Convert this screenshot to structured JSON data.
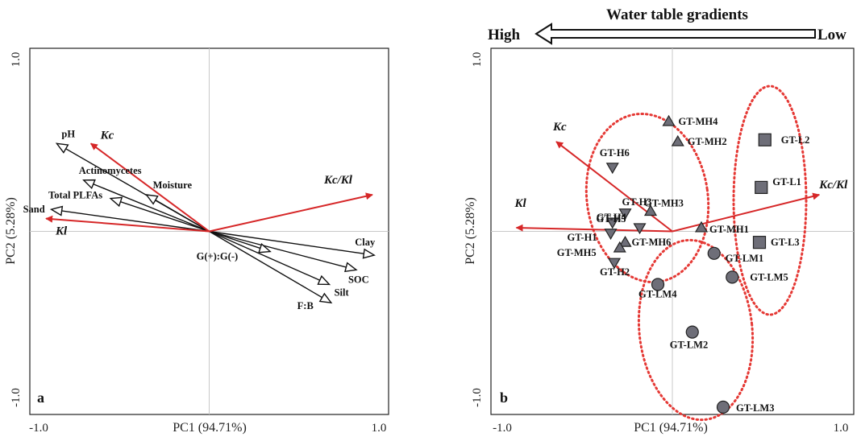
{
  "chart_data": [
    {
      "type": "biplot",
      "panel_label": "a",
      "xlabel": "PC1 (94.71%)",
      "ylabel": "PC2 (5.28%)",
      "xlim": [
        -1.0,
        1.0
      ],
      "ylim": [
        -1.0,
        1.0
      ],
      "x_ticks": [
        "-1.0",
        "1.0"
      ],
      "y_ticks": [
        "1.0",
        "-1.0"
      ],
      "center_lines": true,
      "variable_arrows": [
        {
          "name": "pH",
          "x": -0.85,
          "y": 0.48
        },
        {
          "name": "Actinomycetes",
          "x": -0.7,
          "y": 0.28
        },
        {
          "name": "Moisture",
          "x": -0.35,
          "y": 0.2
        },
        {
          "name": "Total PLFAs",
          "x": -0.55,
          "y": 0.18
        },
        {
          "name": "Sand",
          "x": -0.88,
          "y": 0.12
        },
        {
          "name": "Clay",
          "x": 0.92,
          "y": -0.13
        },
        {
          "name": "SOC",
          "x": 0.82,
          "y": -0.21
        },
        {
          "name": "Silt",
          "x": 0.67,
          "y": -0.29
        },
        {
          "name": "G(+):G(-)",
          "x": 0.34,
          "y": -0.11
        },
        {
          "name": "F:B",
          "x": 0.68,
          "y": -0.39
        }
      ],
      "response_arrows": [
        {
          "name": "Kc",
          "x": -0.66,
          "y": 0.48
        },
        {
          "name": "Kc/Kl",
          "x": 0.91,
          "y": 0.2
        },
        {
          "name": "Kl",
          "x": -0.91,
          "y": 0.07
        }
      ]
    },
    {
      "type": "biplot",
      "panel_label": "b",
      "xlabel": "PC1 (94.71%)",
      "ylabel": "PC2 (5.28%)",
      "xlim": [
        -1.0,
        1.0
      ],
      "ylim": [
        -1.0,
        1.0
      ],
      "x_ticks": [
        "-1.0",
        "1.0"
      ],
      "y_ticks": [
        "1.0",
        "-1.0"
      ],
      "center_lines": true,
      "header": {
        "title": "Water table gradients",
        "left": "High",
        "right": "Low"
      },
      "response_arrows": [
        {
          "name": "Kc",
          "x": -0.64,
          "y": 0.49
        },
        {
          "name": "Kl",
          "x": -0.86,
          "y": 0.02
        },
        {
          "name": "Kc/Kl",
          "x": 0.81,
          "y": 0.2
        }
      ],
      "groups": [
        {
          "name": "H",
          "shape": "triangle-down",
          "points": [
            {
              "label": "GT-H6",
              "x": -0.33,
              "y": 0.35
            },
            {
              "label": "GT-H3",
              "x": -0.26,
              "y": 0.1
            },
            {
              "label": "GT-H4",
              "x": -0.33,
              "y": 0.05
            },
            {
              "label": "GT-H5",
              "x": -0.18,
              "y": 0.02
            },
            {
              "label": "GT-H1",
              "x": -0.34,
              "y": -0.01
            },
            {
              "label": "GT-H2",
              "x": -0.32,
              "y": -0.17
            }
          ]
        },
        {
          "name": "MH",
          "shape": "triangle-up",
          "points": [
            {
              "label": "GT-MH4",
              "x": -0.02,
              "y": 0.6
            },
            {
              "label": "GT-MH2",
              "x": 0.03,
              "y": 0.49
            },
            {
              "label": "GT-MH3",
              "x": -0.12,
              "y": 0.11
            },
            {
              "label": "GT-MH1",
              "x": 0.16,
              "y": 0.02
            },
            {
              "label": "GT-MH6",
              "x": -0.26,
              "y": -0.06
            },
            {
              "label": "GT-MH5",
              "x": -0.29,
              "y": -0.09
            }
          ]
        },
        {
          "name": "L",
          "shape": "square",
          "points": [
            {
              "label": "GT-L2",
              "x": 0.51,
              "y": 0.5
            },
            {
              "label": "GT-L1",
              "x": 0.49,
              "y": 0.24
            },
            {
              "label": "GT-L3",
              "x": 0.48,
              "y": -0.06
            }
          ]
        },
        {
          "name": "LM",
          "shape": "circle",
          "points": [
            {
              "label": "GT-LM1",
              "x": 0.23,
              "y": -0.12
            },
            {
              "label": "GT-LM5",
              "x": 0.33,
              "y": -0.25
            },
            {
              "label": "GT-LM4",
              "x": -0.08,
              "y": -0.29
            },
            {
              "label": "GT-LM2",
              "x": 0.11,
              "y": -0.55
            },
            {
              "label": "GT-LM3",
              "x": 0.28,
              "y": -0.96
            }
          ]
        }
      ]
    }
  ],
  "colors": {
    "response_arrow": "#d62728",
    "variable_arrow": "#111111",
    "ellipse": "#e53935",
    "marker_fill": "#6e6e78",
    "center_line": "#c8c8c8"
  }
}
